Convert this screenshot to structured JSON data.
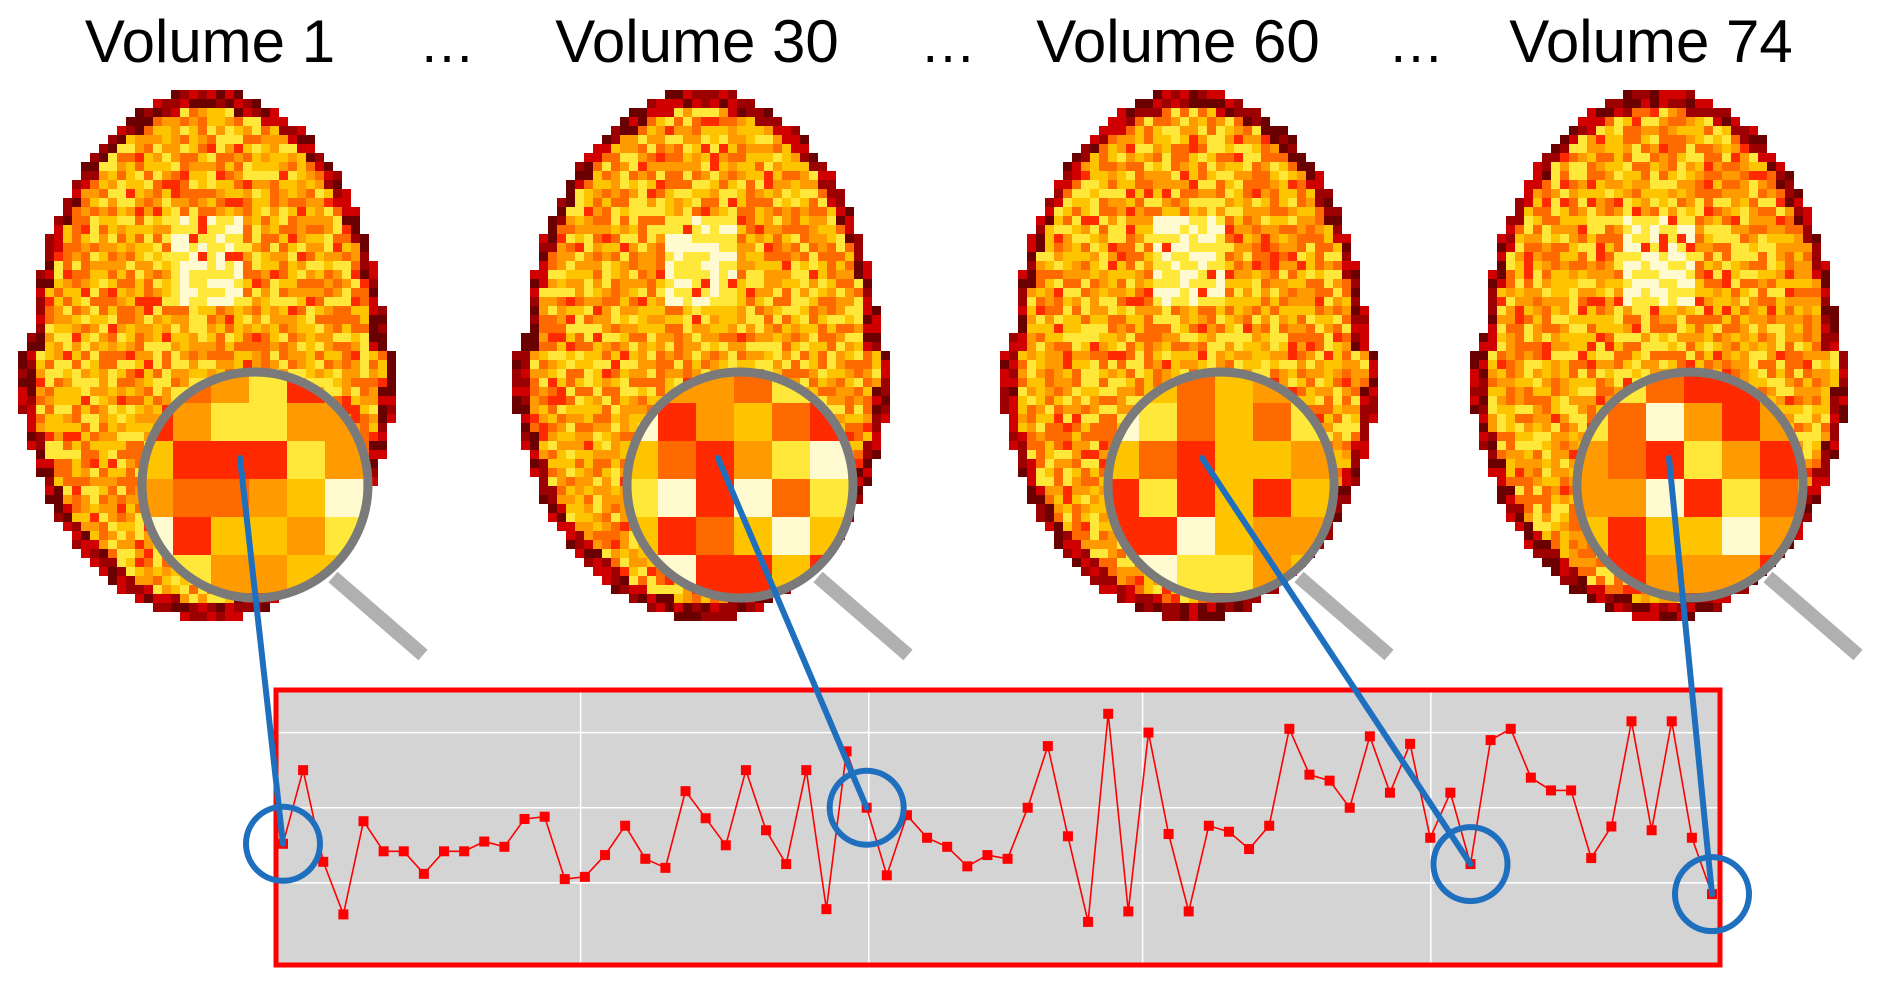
{
  "headings": [
    {
      "label": "Volume 1"
    },
    {
      "label": "…"
    },
    {
      "label": "Volume 30"
    },
    {
      "label": "…"
    },
    {
      "label": "Volume 60"
    },
    {
      "label": "…"
    },
    {
      "label": "Volume 74"
    }
  ],
  "colors": {
    "brain_ramp": [
      "#6b0000",
      "#9c0000",
      "#d00000",
      "#ff2a00",
      "#ff6a00",
      "#ff9a00",
      "#ffc400",
      "#ffe83a",
      "#fffad0"
    ],
    "magnifier_rim": "#7a7a7a",
    "magnifier_handle": "#b0b0b0",
    "connector": "#1f6fbf",
    "highlight_circle": "#1f6fbf",
    "plot_frame": "#ff0000",
    "plot_background": "#d4d4d4",
    "plot_grid": "#ffffff",
    "series": "#ff0000"
  },
  "chart_data": {
    "type": "line",
    "series": [
      {
        "values": [
          15.2,
          25.0,
          12.8,
          5.8,
          18.2,
          14.2,
          14.2,
          11.2,
          14.2,
          14.2,
          15.5,
          14.8,
          18.5,
          18.8,
          10.5,
          10.8,
          13.7,
          17.6,
          13.2,
          12.0,
          22.2,
          18.6,
          15.0,
          25.0,
          17.0,
          12.5,
          25.0,
          6.5,
          27.5,
          20.0,
          11.0,
          19.0,
          16.0,
          14.8,
          12.2,
          13.7,
          13.2,
          20.0,
          28.2,
          16.2,
          4.8,
          32.5,
          6.2,
          30.0,
          16.5,
          6.2,
          17.6,
          16.8,
          14.5,
          17.6,
          30.5,
          24.4,
          23.6,
          20.0,
          29.5,
          22.0,
          28.5,
          16.0,
          22.0,
          12.5,
          29.0,
          30.5,
          24.0,
          22.3,
          22.3,
          13.3,
          17.5,
          31.5,
          17.0,
          31.5,
          16.0,
          8.5
        ]
      }
    ],
    "highlighted_points": [
      {
        "label": "Volume 1",
        "index": 0
      },
      {
        "label": "Volume 30",
        "index": 29
      },
      {
        "label": "Volume 60",
        "index": 59
      },
      {
        "label": "Volume 74",
        "index": 71
      }
    ],
    "ylim": [
      0,
      35
    ],
    "grid": true
  }
}
